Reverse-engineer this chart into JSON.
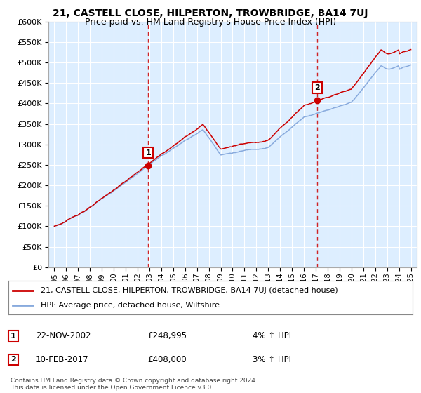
{
  "title": "21, CASTELL CLOSE, HILPERTON, TROWBRIDGE, BA14 7UJ",
  "subtitle": "Price paid vs. HM Land Registry's House Price Index (HPI)",
  "ylim": [
    0,
    600000
  ],
  "ytick_values": [
    0,
    50000,
    100000,
    150000,
    200000,
    250000,
    300000,
    350000,
    400000,
    450000,
    500000,
    550000,
    600000
  ],
  "x_start_year": 1995,
  "x_end_year": 2025,
  "sale1_year": 2002.89,
  "sale1_price": 248995,
  "sale1_label": "1",
  "sale2_year": 2017.12,
  "sale2_price": 408000,
  "sale2_label": "2",
  "line_color_property": "#cc0000",
  "line_color_hpi": "#88aadd",
  "vline_color": "#cc0000",
  "vline_style": "--",
  "background_color": "#ffffff",
  "plot_bg_color": "#ddeeff",
  "grid_color": "#ffffff",
  "legend_label_property": "21, CASTELL CLOSE, HILPERTON, TROWBRIDGE, BA14 7UJ (detached house)",
  "legend_label_hpi": "HPI: Average price, detached house, Wiltshire",
  "annotation1_date": "22-NOV-2002",
  "annotation1_price": "£248,995",
  "annotation1_hpi": "4% ↑ HPI",
  "annotation2_date": "10-FEB-2017",
  "annotation2_price": "£408,000",
  "annotation2_hpi": "3% ↑ HPI",
  "footer": "Contains HM Land Registry data © Crown copyright and database right 2024.\nThis data is licensed under the Open Government Licence v3.0.",
  "title_fontsize": 10,
  "subtitle_fontsize": 9
}
